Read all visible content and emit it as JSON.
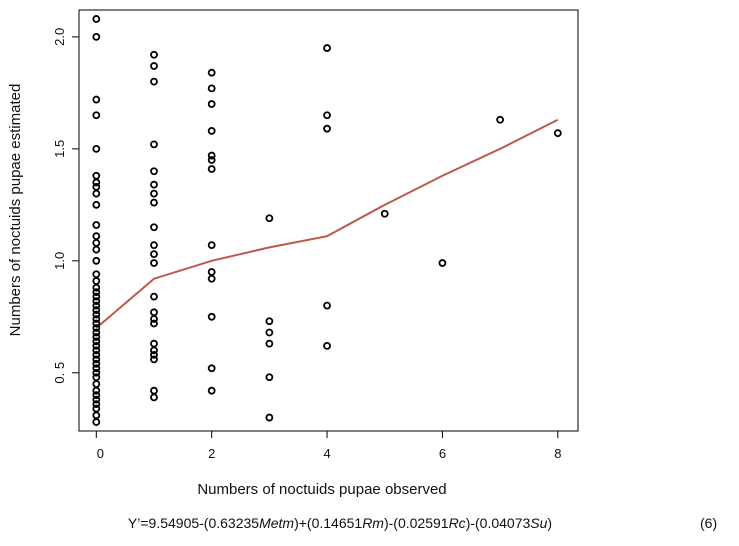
{
  "chart_data": {
    "type": "scatter",
    "xlabel": "Numbers of noctuids pupae observed",
    "ylabel": "Numbers of noctuids pupae estimated",
    "xlim": [
      -0.3,
      8.35
    ],
    "ylim": [
      0.24,
      2.12
    ],
    "x_ticks": [
      0,
      2,
      4,
      6,
      8
    ],
    "y_ticks": [
      0.5,
      1.0,
      1.5,
      2.0
    ],
    "x_tick_labels": [
      "0",
      "2",
      "4",
      "6",
      "8"
    ],
    "y_tick_labels": [
      "0. 5",
      "1.0",
      "1.5",
      "2.0"
    ],
    "grid": false,
    "legend": "none",
    "point_color": "#000000",
    "line_color": "#c0584a",
    "series": [
      {
        "type": "scatter",
        "points": [
          [
            0,
            2.08
          ],
          [
            0,
            2.0
          ],
          [
            0,
            1.72
          ],
          [
            0,
            1.65
          ],
          [
            0,
            1.5
          ],
          [
            0,
            1.38
          ],
          [
            0,
            1.35
          ],
          [
            0,
            1.33
          ],
          [
            0,
            1.3
          ],
          [
            0,
            1.25
          ],
          [
            0,
            1.16
          ],
          [
            0,
            1.11
          ],
          [
            0,
            1.08
          ],
          [
            0,
            1.05
          ],
          [
            0,
            1.0
          ],
          [
            0,
            0.94
          ],
          [
            0,
            0.91
          ],
          [
            0,
            0.88
          ],
          [
            0,
            0.86
          ],
          [
            0,
            0.84
          ],
          [
            0,
            0.82
          ],
          [
            0,
            0.8
          ],
          [
            0,
            0.78
          ],
          [
            0,
            0.76
          ],
          [
            0,
            0.74
          ],
          [
            0,
            0.72
          ],
          [
            0,
            0.7
          ],
          [
            0,
            0.68
          ],
          [
            0,
            0.66
          ],
          [
            0,
            0.64
          ],
          [
            0,
            0.62
          ],
          [
            0,
            0.6
          ],
          [
            0,
            0.58
          ],
          [
            0,
            0.56
          ],
          [
            0,
            0.54
          ],
          [
            0,
            0.52
          ],
          [
            0,
            0.5
          ],
          [
            0,
            0.48
          ],
          [
            0,
            0.45
          ],
          [
            0,
            0.42
          ],
          [
            0,
            0.4
          ],
          [
            0,
            0.38
          ],
          [
            0,
            0.36
          ],
          [
            0,
            0.34
          ],
          [
            0,
            0.31
          ],
          [
            0,
            0.28
          ],
          [
            1,
            1.92
          ],
          [
            1,
            1.87
          ],
          [
            1,
            1.8
          ],
          [
            1,
            1.52
          ],
          [
            1,
            1.4
          ],
          [
            1,
            1.34
          ],
          [
            1,
            1.3
          ],
          [
            1,
            1.26
          ],
          [
            1,
            1.15
          ],
          [
            1,
            1.07
          ],
          [
            1,
            1.03
          ],
          [
            1,
            0.99
          ],
          [
            1,
            0.84
          ],
          [
            1,
            0.77
          ],
          [
            1,
            0.74
          ],
          [
            1,
            0.72
          ],
          [
            1,
            0.63
          ],
          [
            1,
            0.6
          ],
          [
            1,
            0.58
          ],
          [
            1,
            0.56
          ],
          [
            1,
            0.42
          ],
          [
            1,
            0.39
          ],
          [
            2,
            1.84
          ],
          [
            2,
            1.77
          ],
          [
            2,
            1.7
          ],
          [
            2,
            1.58
          ],
          [
            2,
            1.47
          ],
          [
            2,
            1.45
          ],
          [
            2,
            1.41
          ],
          [
            2,
            1.07
          ],
          [
            2,
            0.95
          ],
          [
            2,
            0.92
          ],
          [
            2,
            0.75
          ],
          [
            2,
            0.52
          ],
          [
            2,
            0.42
          ],
          [
            3,
            1.19
          ],
          [
            3,
            0.73
          ],
          [
            3,
            0.68
          ],
          [
            3,
            0.63
          ],
          [
            3,
            0.48
          ],
          [
            3,
            0.3
          ],
          [
            4,
            1.95
          ],
          [
            4,
            1.65
          ],
          [
            4,
            1.59
          ],
          [
            4,
            0.8
          ],
          [
            4,
            0.62
          ],
          [
            5,
            1.21
          ],
          [
            6,
            0.99
          ],
          [
            7,
            1.63
          ],
          [
            8,
            1.57
          ]
        ]
      },
      {
        "type": "line",
        "x": [
          0,
          1,
          2,
          3,
          4,
          5,
          6,
          7,
          8
        ],
        "y": [
          0.7,
          0.92,
          1.0,
          1.06,
          1.11,
          1.25,
          1.38,
          1.5,
          1.63
        ]
      }
    ]
  },
  "equation": {
    "prefix": "Y’=9.54905-(0.63235",
    "var1": "Metm",
    "mid1": ")+(0.14651",
    "var2": "Rm",
    "mid2": ")-(0.02591",
    "var3": "Rc",
    "mid3": ")-(0.04073",
    "var4": "Su",
    "suffix": ")",
    "number": "(6)"
  }
}
